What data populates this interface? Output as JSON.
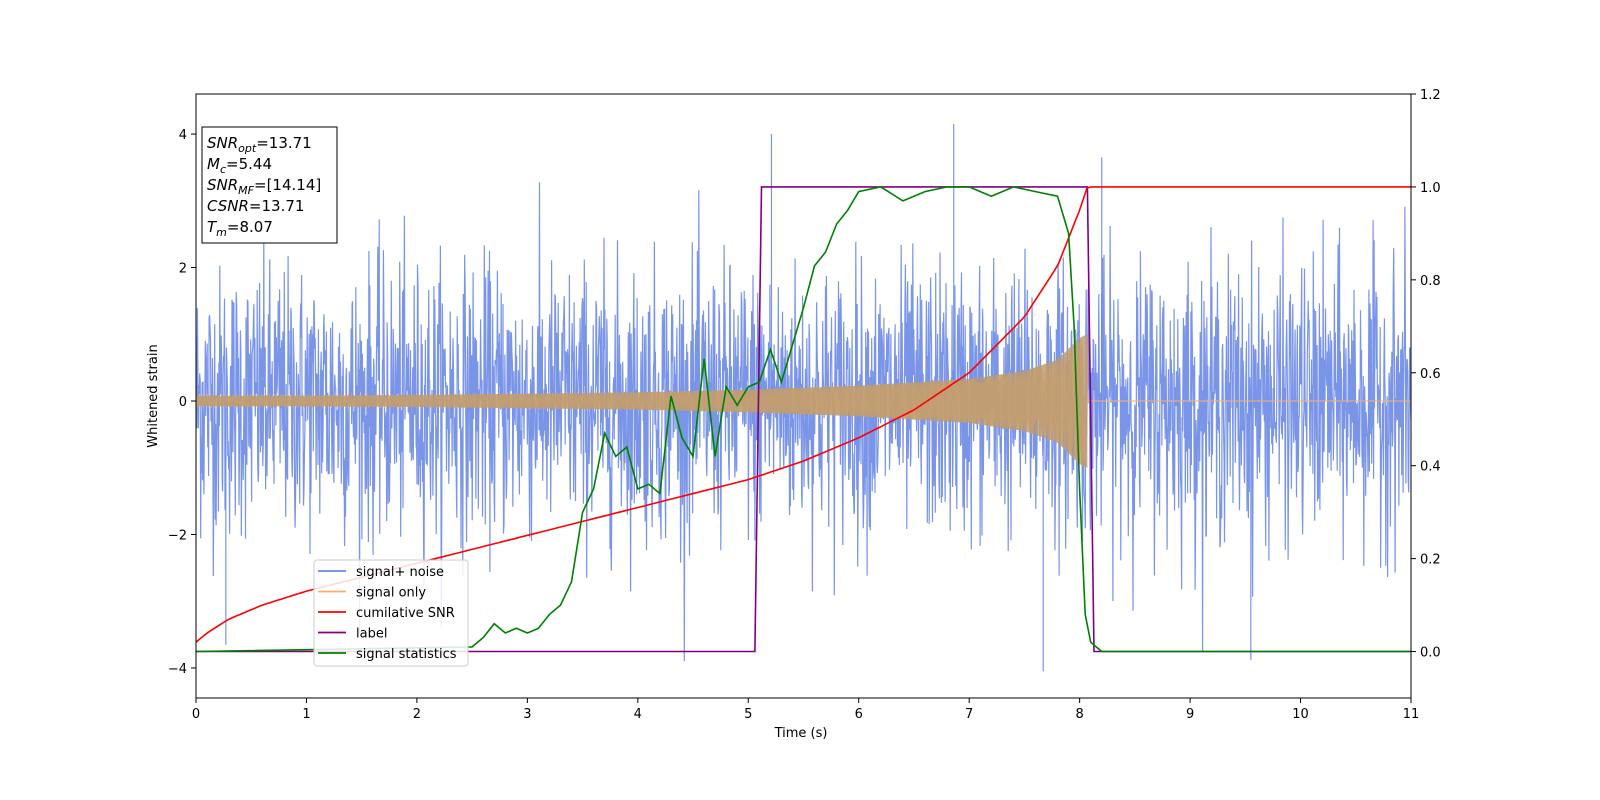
{
  "chart_data": {
    "type": "line",
    "title": "",
    "xlabel": "Time (s)",
    "ylabel": "Whitened strain",
    "ylabel_right": "",
    "xlim": [
      0,
      11
    ],
    "ylim": [
      -4.45,
      4.6
    ],
    "ylim_right": [
      -0.1,
      1.2
    ],
    "x_ticks": [
      "0",
      "1",
      "2",
      "3",
      "4",
      "5",
      "6",
      "7",
      "8",
      "9",
      "10",
      "11"
    ],
    "y_ticks_left": [
      "−4",
      "−2",
      "0",
      "2",
      "4"
    ],
    "y_ticks_right": [
      "0.0",
      "0.2",
      "0.4",
      "0.6",
      "0.8",
      "1.0",
      "1.2"
    ],
    "grid": false,
    "legend_position": "lower-left",
    "colors": {
      "noise": "#6b8ae6",
      "signal": "#f5b06b",
      "csnr": "#ff0000",
      "label": "#800080",
      "stats": "#008000"
    },
    "annotation": [
      {
        "var": "SNR",
        "sub": "opt",
        "val": "=13.71"
      },
      {
        "var": "M",
        "sub": "c",
        "val": "=5.44"
      },
      {
        "var": "SNR",
        "sub": "MF",
        "val": "=[14.14]"
      },
      {
        "var": "CSNR",
        "sub": "",
        "val": "=13.71"
      },
      {
        "var": "T",
        "sub": "m",
        "val": "=8.07"
      }
    ],
    "series": [
      {
        "name": "signal+ noise",
        "axis": "left",
        "description_values": {
          "t_start": 0,
          "t_end": 11,
          "mean": 0.0,
          "std": 1.0,
          "max": 4.15,
          "min": -4.05
        }
      },
      {
        "name": "signal only",
        "axis": "left",
        "envelope": {
          "x": [
            0,
            1,
            2,
            3,
            4,
            5,
            6,
            7,
            7.5,
            7.8,
            8.0,
            8.07
          ],
          "amplitude": [
            0.08,
            0.08,
            0.09,
            0.11,
            0.13,
            0.17,
            0.23,
            0.33,
            0.45,
            0.62,
            0.95,
            1.0
          ]
        },
        "zero_after": 8.07
      },
      {
        "name": "cumilative SNR",
        "axis": "right",
        "x": [
          0,
          0.1,
          0.3,
          0.6,
          1,
          1.5,
          2,
          2.5,
          3,
          3.5,
          4,
          4.5,
          5,
          5.5,
          6,
          6.5,
          7,
          7.5,
          7.8,
          8.0,
          8.07,
          8.1,
          11
        ],
        "y": [
          0.02,
          0.04,
          0.07,
          0.1,
          0.13,
          0.16,
          0.19,
          0.22,
          0.25,
          0.28,
          0.31,
          0.34,
          0.37,
          0.41,
          0.46,
          0.52,
          0.6,
          0.72,
          0.83,
          0.95,
          1.0,
          1.0,
          1.0
        ]
      },
      {
        "name": "label",
        "axis": "right",
        "x": [
          0,
          5.06,
          5.12,
          8.07,
          8.13,
          11
        ],
        "y": [
          0,
          0,
          1,
          1,
          0,
          0
        ]
      },
      {
        "name": "signal statistics",
        "axis": "right",
        "x": [
          0,
          2.5,
          2.6,
          2.7,
          2.8,
          2.9,
          3.0,
          3.1,
          3.2,
          3.3,
          3.4,
          3.5,
          3.6,
          3.7,
          3.8,
          3.9,
          4.0,
          4.1,
          4.2,
          4.3,
          4.4,
          4.5,
          4.6,
          4.7,
          4.8,
          4.9,
          5.0,
          5.1,
          5.2,
          5.3,
          5.4,
          5.5,
          5.6,
          5.7,
          5.8,
          5.9,
          6.0,
          6.2,
          6.4,
          6.6,
          6.8,
          7.0,
          7.2,
          7.4,
          7.6,
          7.8,
          7.9,
          7.95,
          8.0,
          8.05,
          8.1,
          8.15,
          8.2,
          11
        ],
        "y": [
          0,
          0.01,
          0.03,
          0.06,
          0.04,
          0.05,
          0.04,
          0.05,
          0.08,
          0.1,
          0.15,
          0.3,
          0.35,
          0.47,
          0.42,
          0.44,
          0.35,
          0.36,
          0.34,
          0.55,
          0.46,
          0.42,
          0.63,
          0.42,
          0.57,
          0.53,
          0.57,
          0.58,
          0.65,
          0.58,
          0.66,
          0.74,
          0.83,
          0.86,
          0.92,
          0.95,
          0.99,
          1.0,
          0.97,
          0.99,
          1.0,
          1.0,
          0.98,
          1.0,
          0.99,
          0.98,
          0.9,
          0.7,
          0.35,
          0.08,
          0.02,
          0.01,
          0.0,
          0.0
        ]
      }
    ]
  }
}
